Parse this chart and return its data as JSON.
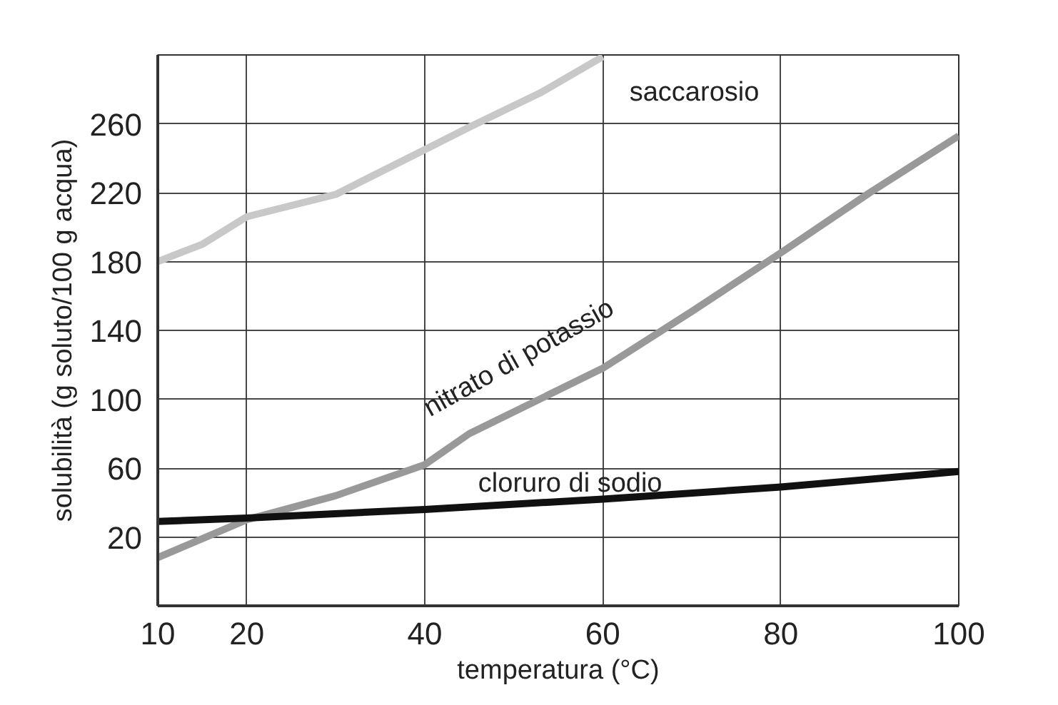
{
  "chart_data": {
    "type": "line",
    "xlabel": "temperatura (°C)",
    "ylabel": "solubilità (g soluto/100 g acqua)",
    "xlim": [
      10,
      100
    ],
    "xticks": [
      10,
      20,
      40,
      60,
      80,
      100
    ],
    "ylim": [
      -20,
      300
    ],
    "yticks": [
      20,
      60,
      100,
      140,
      180,
      220,
      260
    ],
    "grid": true,
    "marker": "none",
    "line_style": "solid",
    "series": [
      {
        "name": "saccarosio",
        "color": "#c8c8c8",
        "x": [
          10,
          15,
          20,
          30,
          40,
          45,
          53,
          60
        ],
        "values": [
          180,
          190,
          206,
          219,
          245,
          258,
          278,
          299
        ]
      },
      {
        "name": "nitrato di potassio",
        "color": "#999999",
        "x": [
          10,
          20,
          30,
          40,
          45,
          60,
          70,
          80,
          90,
          100
        ],
        "values": [
          8,
          30,
          44,
          62,
          80,
          118,
          151,
          185,
          220,
          253
        ]
      },
      {
        "name": "cloruro di sodio",
        "color": "#111111",
        "x": [
          10,
          20,
          40,
          60,
          80,
          100
        ],
        "values": [
          29,
          31,
          36,
          42,
          49,
          58
        ]
      }
    ]
  }
}
